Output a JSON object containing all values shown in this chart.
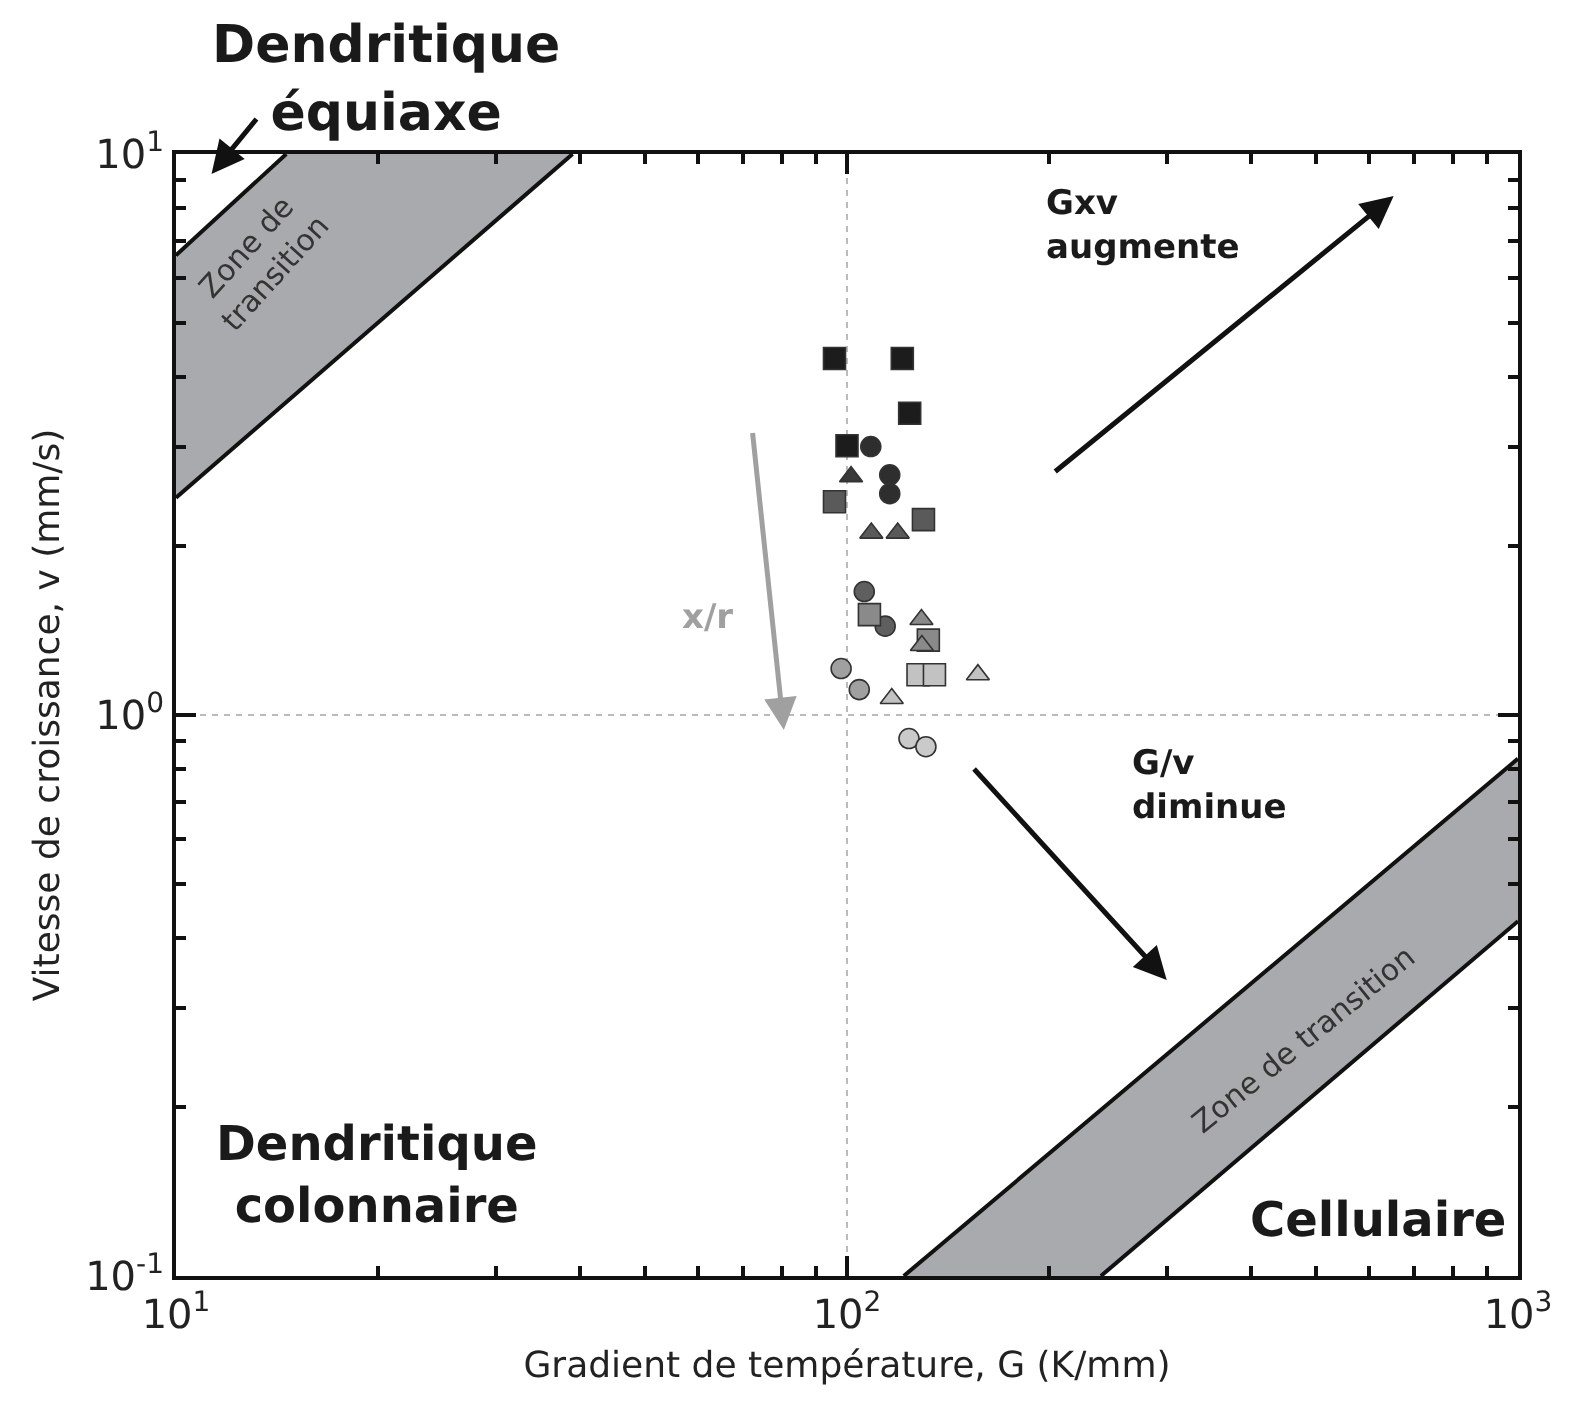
{
  "chart_data": {
    "type": "scatter",
    "xlabel": "Gradient de température, G (K/mm)",
    "ylabel": "Vitesse de croissance, v (mm/s)",
    "log": "xy",
    "grid": true,
    "xlim": [
      10,
      1000
    ],
    "ylim": [
      0.1,
      10
    ],
    "xticks": [
      {
        "value": 10,
        "label": "10$^{1}$"
      },
      {
        "value": 100,
        "label": "10$^{2}$"
      },
      {
        "value": 1000,
        "label": "10$^{3}$"
      }
    ],
    "yticks": [
      {
        "value": 0.1,
        "label": "10$^{-1}$"
      },
      {
        "value": 1,
        "label": "10$^{0}$"
      },
      {
        "value": 10,
        "label": "10$^{1}$"
      }
    ],
    "series": [
      {
        "type": "line",
        "color": "#111111",
        "x": [
          10,
          14.6
        ],
        "values": [
          6.6,
          10
        ]
      },
      {
        "type": "line",
        "color": "#111111",
        "x": [
          10,
          39
        ],
        "values": [
          2.44,
          10
        ]
      },
      {
        "type": "line",
        "color": "#111111",
        "x": [
          121.5,
          1000
        ],
        "values": [
          0.1,
          0.836
        ]
      },
      {
        "type": "line",
        "color": "#111111",
        "x": [
          239,
          1000
        ],
        "values": [
          0.1,
          0.429
        ]
      },
      {
        "marker": "square",
        "color": "#1c1c1c",
        "x": [
          95.8,
          120.9,
          124.0,
          100
        ],
        "values": [
          4.32,
          4.32,
          3.45,
          3.02
        ]
      },
      {
        "marker": "circle",
        "color": "#2e2e2e",
        "x": [
          108.5,
          115.8,
          115.8
        ],
        "values": [
          3.01,
          2.68,
          2.48
        ]
      },
      {
        "marker": "triangle",
        "color": "#3a3a3a",
        "x": [
          101.4
        ],
        "values": [
          2.66
        ]
      },
      {
        "marker": "square",
        "color": "#5a5a5a",
        "x": [
          95.8,
          130.0
        ],
        "values": [
          2.4,
          2.23
        ]
      },
      {
        "marker": "triangle",
        "color": "#5a5a5a",
        "x": [
          108.7,
          119.0
        ],
        "values": [
          2.11,
          2.11
        ]
      },
      {
        "marker": "circle",
        "color": "#5f5f5f",
        "x": [
          106.1,
          114.0
        ],
        "values": [
          1.66,
          1.44
        ]
      },
      {
        "marker": "square",
        "color": "#8a8a8a",
        "x": [
          108.0,
          132.2
        ],
        "values": [
          1.51,
          1.36
        ]
      },
      {
        "marker": "triangle",
        "color": "#8a8a8a",
        "x": [
          129.1,
          129.3
        ],
        "values": [
          1.48,
          1.33
        ]
      },
      {
        "marker": "circle",
        "color": "#a0a0a0",
        "x": [
          98.0,
          104.3
        ],
        "values": [
          1.21,
          1.11
        ]
      },
      {
        "marker": "square",
        "color": "#c2c2c2",
        "x": [
          127.6,
          135.0
        ],
        "values": [
          1.18,
          1.18
        ]
      },
      {
        "marker": "triangle",
        "color": "#c2c2c2",
        "x": [
          156.7,
          116.6
        ],
        "values": [
          1.18,
          1.07
        ]
      },
      {
        "marker": "circle",
        "color": "#cacaca",
        "x": [
          123.7,
          131.1
        ],
        "values": [
          0.908,
          0.878
        ]
      }
    ],
    "annotations": [
      "Dendritique\néquiaxe",
      "Dendritique\ncolonnaire",
      "Cellulaire",
      "Gxv\naugmente",
      "G/v\ndiminue",
      "x/r",
      "Zone de\ntransition",
      "Zone de transition"
    ]
  }
}
